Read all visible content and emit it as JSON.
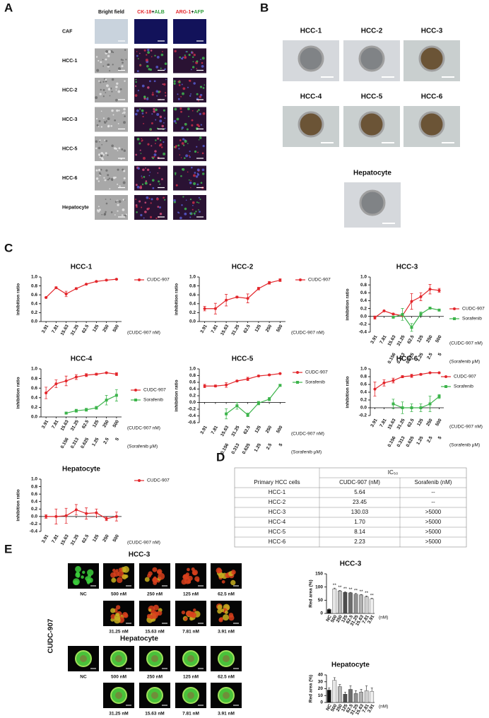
{
  "panel_labels": [
    "A",
    "B",
    "C",
    "D",
    "E"
  ],
  "panel_a": {
    "column_1": "Bright field",
    "column_2": [
      "CK-18",
      "+",
      "ALB"
    ],
    "column_3": [
      "ARG-1",
      "+",
      "AFP"
    ],
    "rows": [
      "CAF",
      "HCC-1",
      "HCC-2",
      "HCC-3",
      "HCC-5",
      "HCC-6",
      "Hepatocyte"
    ]
  },
  "panel_b": {
    "labels": [
      "HCC-1",
      "HCC-2",
      "HCC-3",
      "HCC-4",
      "HCC-5",
      "HCC-6",
      "Hepatocyte"
    ]
  },
  "chart_data": [
    {
      "type": "line",
      "title": "HCC-1",
      "y_label": "inhibition ratio",
      "categories": [
        "3.91",
        "7.81",
        "15.63",
        "31.25",
        "62.5",
        "125",
        "250",
        "500"
      ],
      "x_note": "(CUDC-907 nM)",
      "ylim": [
        0,
        1
      ],
      "yticks": [
        {
          "value": 0,
          "label": "0.0"
        },
        0.2,
        0.4,
        0.6,
        0.8,
        {
          "value": 1,
          "label": "1.0"
        }
      ],
      "series": [
        {
          "name": "CUDC-907",
          "color": "#e3262b",
          "values": [
            0.54,
            0.76,
            0.62,
            0.74,
            0.84,
            0.9,
            0.93,
            0.95
          ],
          "errors": [
            0.01,
            0.02,
            0.06,
            0.02,
            0.01,
            0.01,
            0.01,
            0.01
          ]
        }
      ]
    },
    {
      "type": "line",
      "title": "HCC-2",
      "y_label": "inhibition ratio",
      "categories": [
        "3.91",
        "7.81",
        "15.63",
        "31.25",
        "62.5",
        "125",
        "250",
        "500"
      ],
      "x_note": "(CUDC-907 nM)",
      "ylim": [
        0,
        1
      ],
      "yticks": [
        {
          "value": 0,
          "label": "0.0"
        },
        0.2,
        0.4,
        0.6,
        0.8,
        {
          "value": 1,
          "label": "1.0"
        }
      ],
      "series": [
        {
          "name": "CUDC-907",
          "color": "#e3262b",
          "values": [
            0.29,
            0.29,
            0.48,
            0.55,
            0.52,
            0.74,
            0.87,
            0.93
          ],
          "errors": [
            0.05,
            0.12,
            0.13,
            0.02,
            0.1,
            0.03,
            0.03,
            0.03
          ]
        }
      ]
    },
    {
      "type": "line",
      "title": "HCC-3",
      "y_label": "inhibition ratio",
      "categories": [
        "3.91",
        "7.81",
        "15.63",
        "31.25",
        "62.5",
        "125",
        "250",
        "500"
      ],
      "x_note": "(CUDC-907 nM)",
      "categories_2": [
        null,
        null,
        "0.156",
        "0.313",
        "0.625",
        "1.25",
        "2.5",
        "5"
      ],
      "x_note_2": "(Sorafenib μM)",
      "ylim": [
        -0.4,
        1
      ],
      "yticks": [
        -0.4,
        -0.2,
        {
          "value": 0,
          "label": "0.0"
        },
        0.2,
        0.4,
        0.6,
        0.8,
        {
          "value": 1,
          "label": "1.0"
        }
      ],
      "series": [
        {
          "name": "CUDC-907",
          "color": "#e3262b",
          "values": [
            -0.03,
            0.14,
            0.06,
            0.02,
            0.38,
            0.5,
            0.69,
            0.66
          ],
          "errors": [
            0.04,
            0.01,
            0.02,
            0.02,
            0.2,
            0.1,
            0.12,
            0.05
          ]
        },
        {
          "name": "Sorafenib",
          "color": "#3cb44b",
          "values": [
            null,
            null,
            -0.02,
            0.05,
            -0.28,
            0.06,
            0.21,
            0.16
          ],
          "errors": [
            null,
            null,
            0.02,
            0.15,
            0.1,
            0.05,
            0.02,
            0.02
          ]
        }
      ]
    },
    {
      "type": "line",
      "title": "HCC-4",
      "y_label": "inhibition ratio",
      "categories": [
        "3.91",
        "7.81",
        "15.63",
        "31.25",
        "62.5",
        "125",
        "250",
        "500"
      ],
      "x_note": "(CUDC-907 nM)",
      "categories_2": [
        null,
        null,
        "0.156",
        "0.313",
        "0.625",
        "1.25",
        "2.5",
        "5"
      ],
      "x_note_2": "(Sorafenib μM)",
      "ylim": [
        0,
        1
      ],
      "yticks": [
        {
          "value": 0,
          "label": "0.0"
        },
        0.2,
        0.4,
        0.6,
        0.8,
        {
          "value": 1,
          "label": "1.0"
        }
      ],
      "series": [
        {
          "name": "CUDC-907",
          "color": "#e3262b",
          "values": [
            0.5,
            0.69,
            0.75,
            0.83,
            0.87,
            0.89,
            0.92,
            0.89
          ],
          "errors": [
            0.12,
            0.08,
            0.1,
            0.05,
            0.03,
            0.02,
            0.01,
            0.03
          ]
        },
        {
          "name": "Sorafenib",
          "color": "#3cb44b",
          "values": [
            null,
            null,
            0.08,
            0.13,
            0.15,
            0.19,
            0.35,
            0.45
          ],
          "errors": [
            null,
            null,
            0.01,
            0.03,
            0.03,
            0.03,
            0.1,
            0.12
          ]
        }
      ]
    },
    {
      "type": "line",
      "title": "HCC-5",
      "y_label": "inhibition ratio",
      "categories": [
        "3.91",
        "7.81",
        "15.63",
        "31.25",
        "62.5",
        "125",
        "250",
        "500"
      ],
      "x_note": "(CUDC-907 nM)",
      "categories_2": [
        null,
        null,
        "0.156",
        "0.313",
        "0.625",
        "1.25",
        "2.5",
        "5"
      ],
      "x_note_2": "(Sorafenib μM)",
      "ylim": [
        -0.6,
        1
      ],
      "yticks": [
        -0.6,
        -0.4,
        -0.2,
        {
          "value": 0,
          "label": "0.0"
        },
        0.2,
        0.4,
        0.6,
        0.8,
        {
          "value": 1,
          "label": "1.0"
        }
      ],
      "series": [
        {
          "name": "CUDC-907",
          "color": "#e3262b",
          "values": [
            0.49,
            0.49,
            0.52,
            0.64,
            0.7,
            0.79,
            0.82,
            0.86
          ],
          "errors": [
            0.05,
            0.03,
            0.07,
            0.02,
            0.05,
            0.02,
            0.02,
            0.01
          ]
        },
        {
          "name": "Sorafenib",
          "color": "#3cb44b",
          "values": [
            null,
            null,
            -0.34,
            -0.1,
            -0.37,
            -0.02,
            0.1,
            0.51
          ],
          "errors": [
            null,
            null,
            0.15,
            0.1,
            0.05,
            0.05,
            0.05,
            0.03
          ]
        }
      ]
    },
    {
      "type": "line",
      "title": "HCC-6",
      "y_label": "inhibition ratio",
      "categories": [
        "3.91",
        "7.81",
        "15.63",
        "31.25",
        "62.5",
        "125",
        "250",
        "500"
      ],
      "x_note": "(CUDC-907 nM)",
      "categories_2": [
        null,
        null,
        "0.156",
        "0.313",
        "0.625",
        "1.25",
        "2.5",
        "5"
      ],
      "x_note_2": "(Sorafenib μM)",
      "ylim": [
        -0.2,
        1
      ],
      "yticks": [
        -0.2,
        {
          "value": 0,
          "label": "0.0"
        },
        0.2,
        0.4,
        0.6,
        0.8,
        {
          "value": 1,
          "label": "1.0"
        }
      ],
      "series": [
        {
          "name": "CUDC-907",
          "color": "#e3262b",
          "values": [
            0.48,
            0.64,
            0.7,
            0.8,
            0.82,
            0.86,
            0.9,
            0.9
          ],
          "errors": [
            0.18,
            0.08,
            0.06,
            0.03,
            0.04,
            0.02,
            0.01,
            0.01
          ]
        },
        {
          "name": "Sorafenib",
          "color": "#3cb44b",
          "values": [
            null,
            null,
            0.1,
            0,
            0,
            0,
            0.1,
            0.29
          ],
          "errors": [
            null,
            null,
            0.12,
            0.15,
            0.1,
            0.1,
            0.2,
            0.05
          ]
        }
      ]
    },
    {
      "type": "line",
      "title": "Hepatocyte",
      "y_label": "inhibition ratio",
      "categories": [
        "3.91",
        "7.81",
        "15.63",
        "31.25",
        "62.5",
        "125",
        "250",
        "500"
      ],
      "x_note": "(CUDC-907 nM)",
      "ylim": [
        -0.4,
        1
      ],
      "yticks": [
        -0.4,
        -0.2,
        {
          "value": 0,
          "label": "0.0"
        },
        0.2,
        0.4,
        0.6,
        0.8,
        {
          "value": 1,
          "label": "1.0"
        }
      ],
      "series": [
        {
          "name": "CUDC-907",
          "color": "#e3262b",
          "values": [
            0,
            0,
            0.02,
            0.18,
            0.08,
            0.1,
            -0.06,
            0
          ],
          "errors": [
            0.05,
            0.2,
            0.2,
            0.14,
            0.15,
            0.1,
            0.05,
            0.12
          ]
        }
      ]
    },
    {
      "type": "bar",
      "title": "HCC-3",
      "y_label": "Red area (%)",
      "categories": [
        "NC",
        "500",
        "250",
        "125",
        "62.5",
        "31.25",
        "15.63",
        "7.81",
        "3.91"
      ],
      "x_note": "(nM)",
      "ylim": [
        0,
        150
      ],
      "yticks": [
        0,
        50,
        100,
        150
      ],
      "colors": [
        "#111111",
        "#e6e6e6",
        "#b5b5b5",
        "#4d4d4d",
        "#6e6e6e",
        "#8f8f8f",
        "#b0b0b0",
        "#cfcfcf",
        "#eeeeee"
      ],
      "values": [
        15,
        93,
        85,
        80,
        78,
        73,
        70,
        63,
        55
      ],
      "errors": [
        2,
        3,
        2,
        2,
        2,
        3,
        2,
        3,
        2
      ],
      "annotations": [
        null,
        "**",
        "**",
        "**",
        "**",
        "**",
        "**",
        "**",
        "**"
      ]
    },
    {
      "type": "bar",
      "title": "Hepatocyte",
      "y_label": "Red area (%)",
      "categories": [
        "NC",
        "500",
        "250",
        "125",
        "62.5",
        "31.25",
        "15.63",
        "7.81",
        "3.91"
      ],
      "x_note": "(nM)",
      "ylim": [
        0,
        40
      ],
      "yticks": [
        0,
        10,
        20,
        30,
        40
      ],
      "colors": [
        "#111111",
        "#e6e6e6",
        "#b5b5b5",
        "#4d4d4d",
        "#6e6e6e",
        "#8f8f8f",
        "#b0b0b0",
        "#cfcfcf",
        "#eeeeee"
      ],
      "values": [
        18,
        32,
        23,
        12,
        19,
        13,
        15,
        17,
        16
      ],
      "errors": [
        3,
        4,
        3,
        3,
        5,
        4,
        4,
        7,
        5
      ]
    }
  ],
  "table": {
    "group_header": "IC₅₀",
    "header": [
      "Primary HCC cells",
      "CUDC-907 (nM)",
      "Sorafenib (nM)"
    ],
    "rows": [
      [
        "HCC-1",
        "5.64",
        "--"
      ],
      [
        "HCC-2",
        "23.45",
        "--"
      ],
      [
        "HCC-3",
        "130.03",
        ">5000"
      ],
      [
        "HCC-4",
        "1.70",
        ">5000"
      ],
      [
        "HCC-5",
        "8.14",
        ">5000"
      ],
      [
        "HCC-6",
        "2.23",
        ">5000"
      ]
    ]
  },
  "panel_e": {
    "groups": [
      "HCC-3",
      "Hepatocyte"
    ],
    "treatment": "CUDC-907",
    "image_labels": [
      "NC",
      "500 nM",
      "250 nM",
      "125 nM",
      "62.5 nM",
      "31.25 nM",
      "15.63 nM",
      "7.81 nM",
      "3.91 nM"
    ]
  }
}
